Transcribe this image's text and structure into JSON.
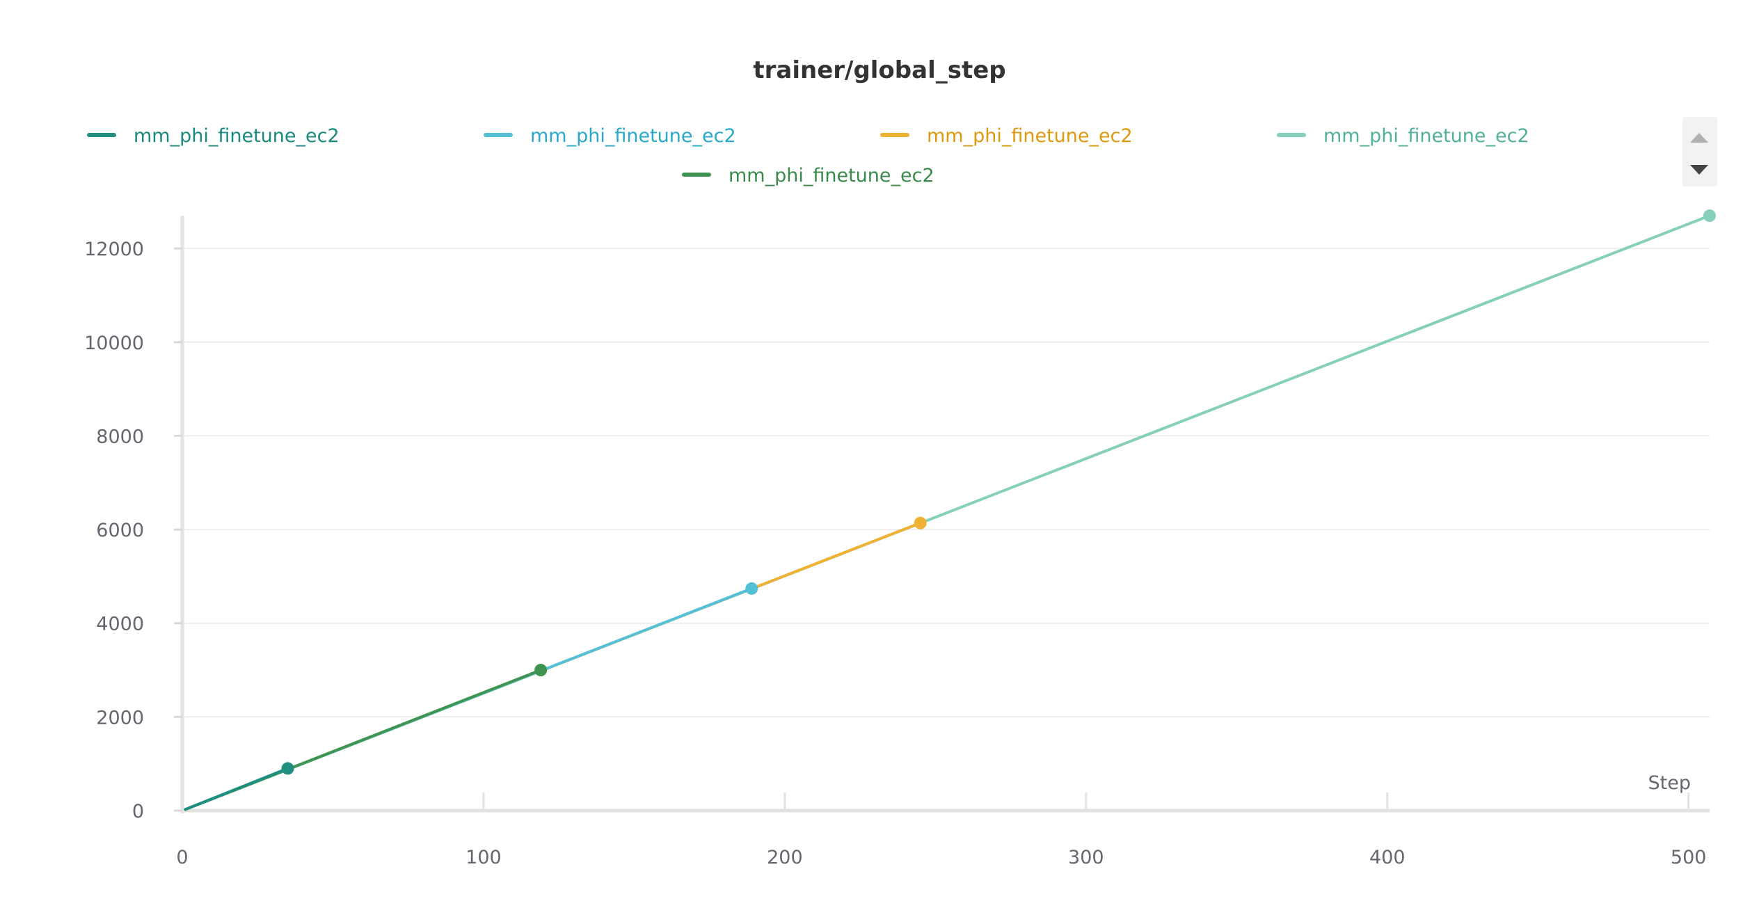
{
  "chart_data": {
    "type": "line",
    "title": "trainer/global_step",
    "xlabel": "Step",
    "ylabel": "",
    "xlim": [
      0,
      507
    ],
    "ylim": [
      0,
      12700
    ],
    "xticks": [
      0,
      100,
      200,
      300,
      400,
      500
    ],
    "yticks": [
      0,
      2000,
      4000,
      6000,
      8000,
      10000,
      12000
    ],
    "grid": true,
    "legend_position": "top",
    "series": [
      {
        "name": "mm_phi_finetune_ec2",
        "color": "#1f8f82",
        "x": [
          1,
          35
        ],
        "y": [
          25,
          900
        ]
      },
      {
        "name": "mm_phi_finetune_ec2",
        "color": "#54c1d9",
        "x": [
          1,
          189
        ],
        "y": [
          25,
          4740
        ]
      },
      {
        "name": "mm_phi_finetune_ec2",
        "color": "#f0b232",
        "x": [
          1,
          245
        ],
        "y": [
          25,
          6140
        ]
      },
      {
        "name": "mm_phi_finetune_ec2",
        "color": "#86cfbb",
        "x": [
          1,
          507
        ],
        "y": [
          25,
          12700
        ]
      },
      {
        "name": "mm_phi_finetune_ec2",
        "color": "#3f9452",
        "x": [
          1,
          119
        ],
        "y": [
          25,
          3000
        ]
      }
    ]
  },
  "legend": {
    "text_colors": [
      "#1a8a7e",
      "#2aa9c9",
      "#dd9a10",
      "#52b09a",
      "#3a8a4c"
    ]
  }
}
